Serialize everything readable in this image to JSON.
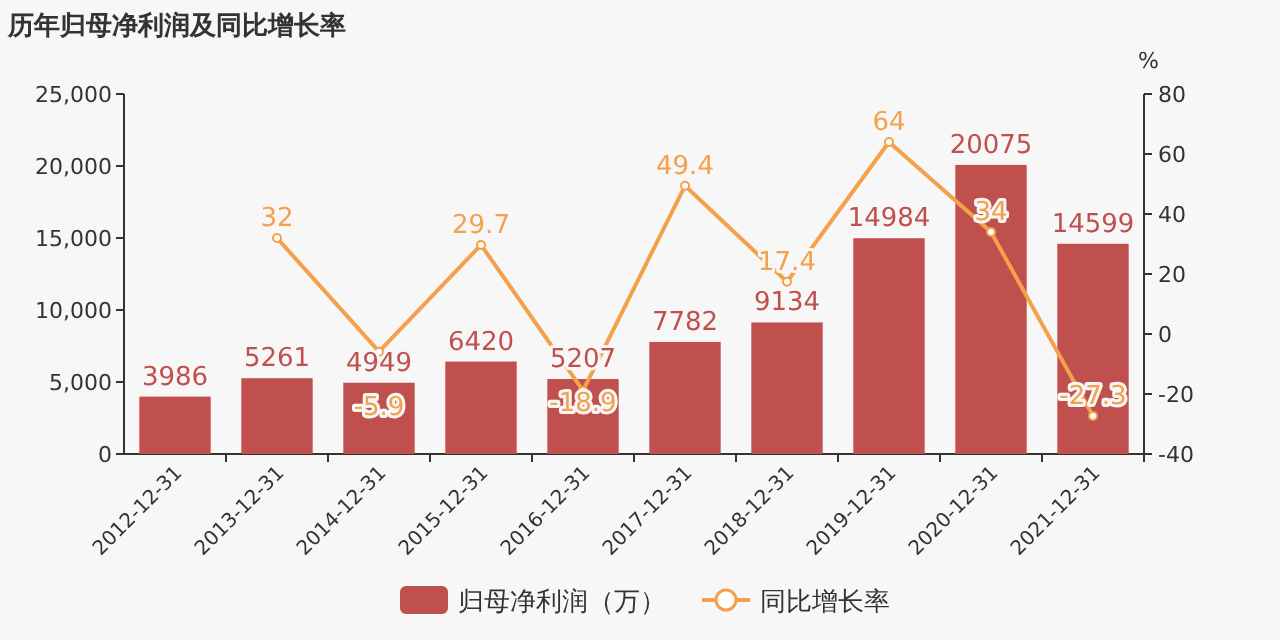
{
  "chart_data": {
    "type": "bar",
    "title": "历年归母净利润及同比增长率",
    "y2label": "%",
    "categories": [
      "2012-12-31",
      "2013-12-31",
      "2014-12-31",
      "2015-12-31",
      "2016-12-31",
      "2017-12-31",
      "2018-12-31",
      "2019-12-31",
      "2020-12-31",
      "2021-12-31"
    ],
    "series": [
      {
        "name": "归母净利润（万）",
        "color": "#c0504d",
        "values": [
          3986,
          5261,
          4949,
          6420,
          5207,
          7782,
          9134,
          14984,
          20075,
          14599
        ]
      },
      {
        "name": "同比增长率",
        "type": "line",
        "axis": "y2",
        "color": "#f5a04b",
        "marker": "circle",
        "values": [
          null,
          32,
          -5.9,
          29.7,
          -18.9,
          49.4,
          17.4,
          64,
          34,
          -27.3
        ]
      }
    ],
    "ylim": [
      0,
      25000
    ],
    "yticks": [
      0,
      {
        "value": 5000,
        "label": "5,000"
      },
      {
        "value": 10000,
        "label": "10,000"
      },
      {
        "value": 15000,
        "label": "15,000"
      },
      {
        "value": 20000,
        "label": "20,000"
      },
      {
        "value": 25000,
        "label": "25,000"
      }
    ],
    "y2lim": [
      -40,
      80
    ],
    "y2ticks": [
      -40,
      -20,
      0,
      20,
      40,
      60,
      80
    ],
    "data_labels": true,
    "legend": "bottom",
    "grid": false
  }
}
